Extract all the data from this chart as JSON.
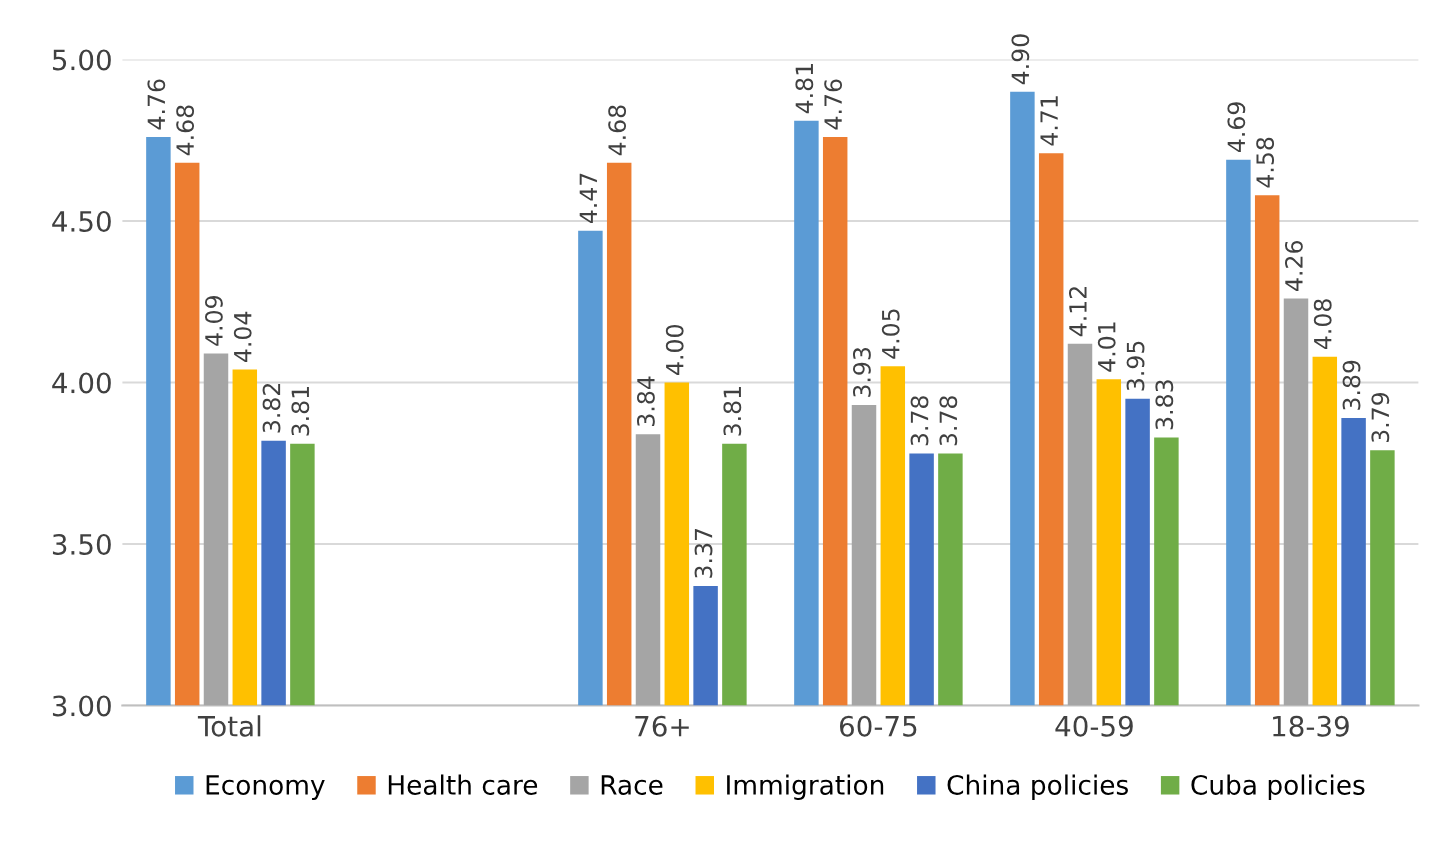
{
  "chart_data": {
    "type": "bar",
    "categories": [
      "Total",
      null,
      "76+",
      "60-75",
      "40-59",
      "18-39"
    ],
    "series": [
      {
        "name": "Economy",
        "color": "#5b9bd5",
        "values": [
          4.76,
          null,
          4.47,
          4.81,
          4.9,
          4.69
        ],
        "value_labels": [
          "4.76",
          null,
          "4.47",
          "4.81",
          "4.90",
          "4.69"
        ]
      },
      {
        "name": "Health care",
        "color": "#ed7d31",
        "values": [
          4.68,
          null,
          4.68,
          4.76,
          4.71,
          4.58
        ],
        "value_labels": [
          "4.68",
          null,
          "4.68",
          "4.76",
          "4.71",
          "4.58"
        ]
      },
      {
        "name": "Race",
        "color": "#a5a5a5",
        "values": [
          4.09,
          null,
          3.84,
          3.93,
          4.12,
          4.26
        ],
        "value_labels": [
          "4.09",
          null,
          "3.84",
          "3.93",
          "4.12",
          "4.26"
        ]
      },
      {
        "name": "Immigration",
        "color": "#ffc000",
        "values": [
          4.04,
          null,
          4.0,
          4.05,
          4.01,
          4.08
        ],
        "value_labels": [
          "4.04",
          null,
          "4.00",
          "4.05",
          "4.01",
          "4.08"
        ]
      },
      {
        "name": "China policies",
        "color": "#4472c4",
        "values": [
          3.82,
          null,
          3.37,
          3.78,
          3.95,
          3.89
        ],
        "value_labels": [
          "3.82",
          null,
          "3.37",
          "3.78",
          "3.95",
          "3.89"
        ]
      },
      {
        "name": "Cuba policies",
        "color": "#70ad47",
        "values": [
          3.81,
          null,
          3.81,
          3.78,
          3.83,
          3.79
        ],
        "value_labels": [
          "3.81",
          null,
          "3.81",
          "3.78",
          "3.83",
          "3.79"
        ]
      }
    ],
    "ylim": [
      3.0,
      5.0
    ],
    "yticks": [
      {
        "value": 3.0,
        "label": "3.00"
      },
      {
        "value": 3.5,
        "label": "3.50"
      },
      {
        "value": 4.0,
        "label": "4.00"
      },
      {
        "value": 4.5,
        "label": "4.50"
      },
      {
        "value": 5.0,
        "label": "5.00"
      }
    ],
    "grid": "y",
    "legend": "bottom"
  }
}
